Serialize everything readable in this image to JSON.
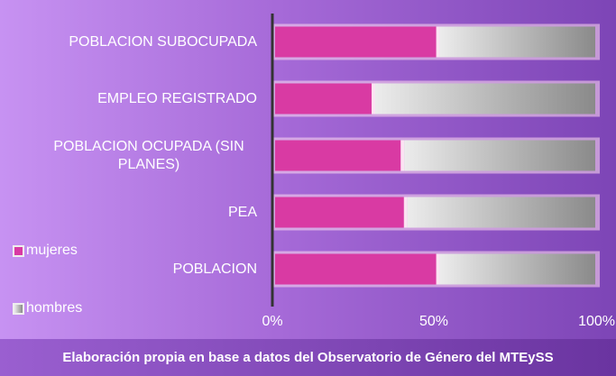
{
  "chart_data": {
    "type": "stacked_barh",
    "categories": [
      "POBLACION SUBOCUPADA",
      "EMPLEO REGISTRADO",
      "POBLACION OCUPADA (SIN PLANES)",
      "PEA",
      "POBLACION"
    ],
    "series": [
      {
        "name": "mujeres",
        "color": "#d93aa3",
        "values": [
          51,
          31,
          40,
          41,
          51
        ]
      },
      {
        "name": "hombres",
        "color": "#8a8a8a",
        "values": [
          49,
          69,
          60,
          59,
          49
        ]
      }
    ],
    "xlim": [
      0,
      100
    ],
    "xticks": [
      {
        "value": 0,
        "label": "0%"
      },
      {
        "value": 50,
        "label": "50%"
      },
      {
        "value": 100,
        "label": "100%"
      }
    ],
    "legend": "left",
    "caption": "Elaboración propia en base a datos del Observatorio de Género del MTEySS"
  }
}
